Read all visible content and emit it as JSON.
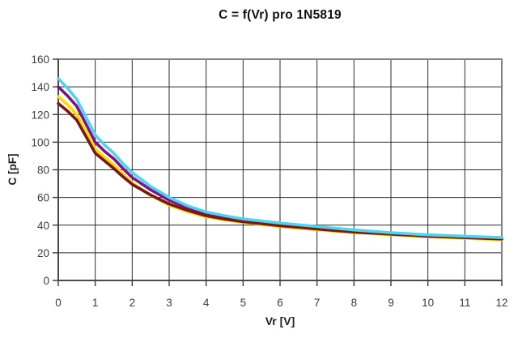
{
  "title": "C = f(Vr) pro 1N5819",
  "chart_data": {
    "type": "line",
    "title": "C = f(Vr) pro 1N5819",
    "xlabel": "Vr [V]",
    "ylabel": "C [pF]",
    "xlim": [
      0,
      12
    ],
    "ylim": [
      0,
      160
    ],
    "x_ticks": [
      0,
      1,
      2,
      3,
      4,
      5,
      6,
      7,
      8,
      9,
      10,
      11,
      12
    ],
    "y_ticks": [
      0,
      20,
      40,
      60,
      80,
      100,
      120,
      140,
      160
    ],
    "grid": true,
    "legend_position": "none",
    "x": [
      0,
      0.25,
      0.5,
      0.75,
      1,
      1.25,
      1.5,
      1.75,
      2,
      2.5,
      3,
      3.5,
      4,
      4.5,
      5,
      6,
      7,
      8,
      9,
      10,
      11,
      12
    ],
    "series": [
      {
        "name": "yellow",
        "color": "#FFD900",
        "values": [
          133,
          127,
          120,
          107.5,
          95,
          89,
          83.5,
          77,
          70.5,
          61.5,
          54.5,
          49.8,
          46,
          43.8,
          42,
          39,
          36.7,
          34.6,
          33,
          31.6,
          30.5,
          29.5
        ]
      },
      {
        "name": "purple",
        "color": "#7B1486",
        "values": [
          140,
          133.5,
          126,
          113,
          100,
          93.5,
          88,
          81,
          74.5,
          65.5,
          58,
          52.5,
          48.2,
          45.7,
          43.7,
          40.7,
          38.2,
          35.8,
          34.2,
          32.7,
          31.7,
          30.7
        ]
      },
      {
        "name": "dark-red",
        "color": "#7A1616",
        "values": [
          128,
          122.5,
          116,
          104,
          92,
          86.5,
          81,
          75,
          69.5,
          61.8,
          55.3,
          50.7,
          46.8,
          44.4,
          42.5,
          39.6,
          37.2,
          35,
          33.5,
          32,
          31,
          30
        ]
      },
      {
        "name": "cyan",
        "color": "#4FD4EE",
        "values": [
          146,
          139,
          131,
          118,
          105,
          98,
          92,
          84.5,
          78,
          68,
          60,
          54,
          49.5,
          46.8,
          44.5,
          41.5,
          39,
          36.5,
          34.5,
          33,
          32,
          31
        ]
      }
    ],
    "colors": {
      "background": "#ffffff",
      "gridline": "#2b2b2b",
      "plot_border": "#848484",
      "axis": "#3a3a3a",
      "tick_label": "#3d3d3d",
      "title_text": "#111111"
    }
  }
}
